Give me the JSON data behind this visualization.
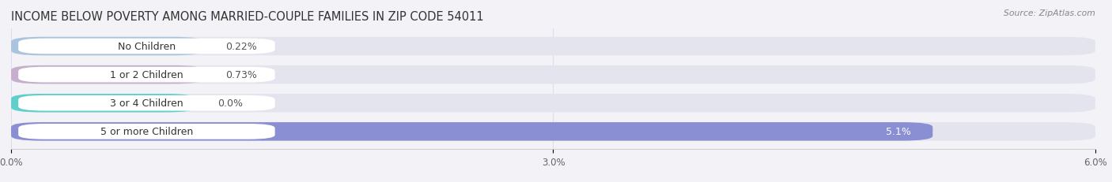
{
  "title": "INCOME BELOW POVERTY AMONG MARRIED-COUPLE FAMILIES IN ZIP CODE 54011",
  "source": "Source: ZipAtlas.com",
  "categories": [
    "No Children",
    "1 or 2 Children",
    "3 or 4 Children",
    "5 or more Children"
  ],
  "values": [
    0.22,
    0.73,
    0.0,
    5.1
  ],
  "value_labels": [
    "0.22%",
    "0.73%",
    "0.0%",
    "5.1%"
  ],
  "bar_colors": [
    "#a8c4de",
    "#c8aece",
    "#5ecfca",
    "#8a8fd4"
  ],
  "background_color": "#f2f2f7",
  "bar_bg_color": "#e4e4ee",
  "xlim": [
    0,
    6.0
  ],
  "xticks": [
    0.0,
    3.0,
    6.0
  ],
  "xticklabels": [
    "0.0%",
    "3.0%",
    "6.0%"
  ],
  "title_fontsize": 10.5,
  "label_fontsize": 9,
  "tick_fontsize": 8.5,
  "bar_height": 0.65,
  "figsize": [
    14.06,
    2.32
  ],
  "dpi": 100
}
